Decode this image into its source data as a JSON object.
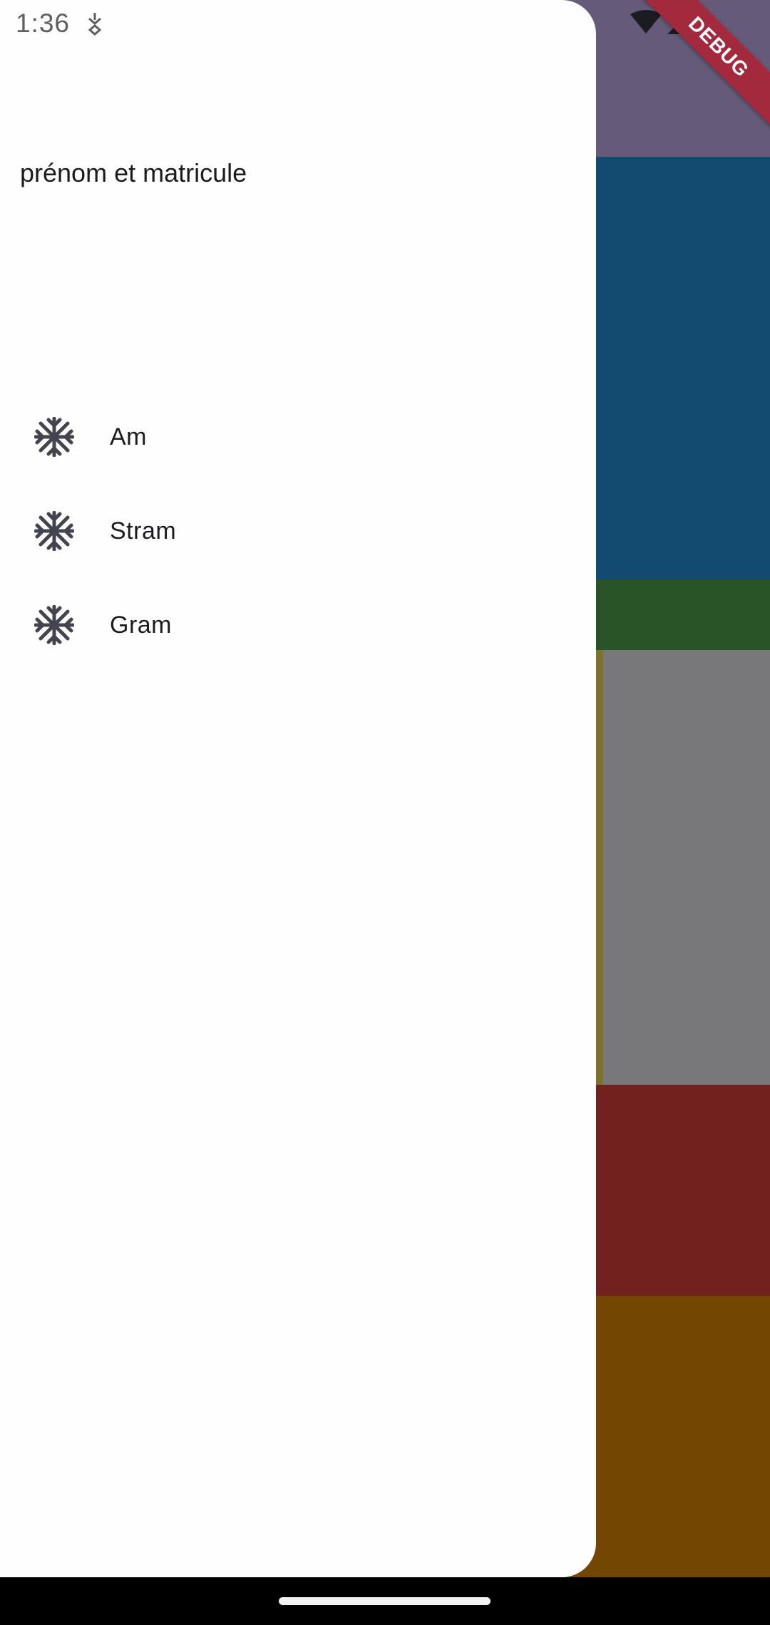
{
  "status_bar": {
    "time": "1:36"
  },
  "debug_banner": {
    "label": "DEBUG"
  },
  "drawer": {
    "header_text": "prénom et matricule",
    "items": [
      {
        "label": "Am",
        "icon": "snowflake-icon"
      },
      {
        "label": "Stram",
        "icon": "snowflake-icon"
      },
      {
        "label": "Gram",
        "icon": "snowflake-icon"
      }
    ]
  },
  "colors": {
    "appbar": "#655a78",
    "blue": "#124a70",
    "green": "#285428",
    "gray": "#787779",
    "red": "#72211e",
    "orange": "#734601",
    "debug": "#a22a3c",
    "icon": "#44444f"
  }
}
